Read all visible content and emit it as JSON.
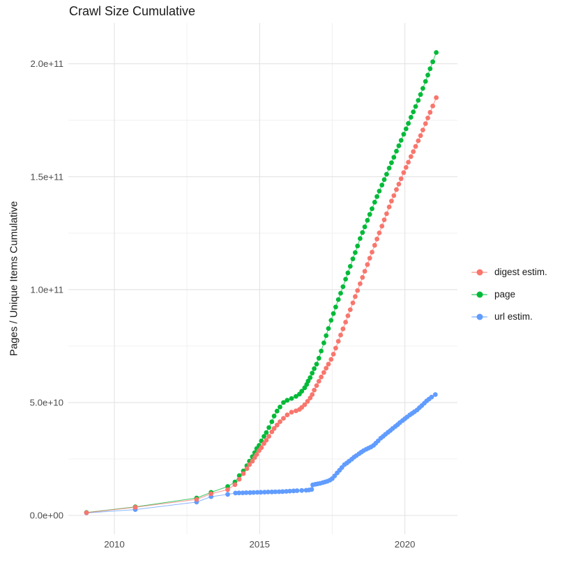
{
  "chart_data": {
    "type": "scatter",
    "title": "Crawl Size Cumulative",
    "xlabel": "",
    "ylabel": "Pages / Unique Items Cumulative",
    "legend_position": "right",
    "grid": true,
    "value_unit": "billions (1e9) of pages / unique items",
    "x_range": [
      2008.4,
      2021.7
    ],
    "ylim_billions": [
      0,
      215
    ],
    "axes": {
      "x": {
        "ticks": [
          {
            "year": 2010,
            "label": "2010"
          },
          {
            "year": 2015,
            "label": "2015"
          },
          {
            "year": 2020,
            "label": "2020"
          }
        ],
        "minor_years": [
          2012.5,
          2017.5
        ]
      },
      "y": {
        "ticks": [
          {
            "value_billions": 0,
            "label": "0.0e+00"
          },
          {
            "value_billions": 50,
            "label": "5.0e+10"
          },
          {
            "value_billions": 100,
            "label": "1.0e+11"
          },
          {
            "value_billions": 150,
            "label": "1.5e+11"
          },
          {
            "value_billions": 200,
            "label": "2.0e+11"
          }
        ],
        "minor_billions": [
          25,
          75,
          125,
          175
        ]
      }
    },
    "series": [
      {
        "name": "digest estim.",
        "color": "#F8766D",
        "points": [
          [
            2009.04,
            1.2
          ],
          [
            2010.72,
            3.6
          ],
          [
            2012.83,
            7.1
          ],
          [
            2013.33,
            9.6
          ],
          [
            2013.9,
            11.4
          ],
          [
            2014.15,
            13.6
          ],
          [
            2014.3,
            16
          ],
          [
            2014.44,
            18.5
          ],
          [
            2014.56,
            20.7
          ],
          [
            2014.65,
            22.5
          ],
          [
            2014.75,
            24
          ],
          [
            2014.83,
            25.6
          ],
          [
            2014.9,
            27
          ],
          [
            2014.98,
            28.7
          ],
          [
            2015.06,
            30
          ],
          [
            2015.15,
            31.8
          ],
          [
            2015.23,
            33.3
          ],
          [
            2015.32,
            35
          ],
          [
            2015.42,
            37
          ],
          [
            2015.5,
            38.5
          ],
          [
            2015.6,
            40
          ],
          [
            2015.7,
            41.5
          ],
          [
            2015.82,
            43
          ],
          [
            2015.95,
            44.5
          ],
          [
            2016.1,
            45.7
          ],
          [
            2016.25,
            46.3
          ],
          [
            2016.37,
            46.9
          ],
          [
            2016.45,
            47.8
          ],
          [
            2016.55,
            49
          ],
          [
            2016.65,
            50.5
          ],
          [
            2016.74,
            52
          ],
          [
            2016.81,
            53.5
          ],
          [
            2016.88,
            55.5
          ],
          [
            2016.96,
            57.5
          ],
          [
            2017.04,
            59.4
          ],
          [
            2017.12,
            61.3
          ],
          [
            2017.21,
            63.3
          ],
          [
            2017.29,
            65.2
          ],
          [
            2017.37,
            67
          ],
          [
            2017.46,
            69.1
          ],
          [
            2017.54,
            71.4
          ],
          [
            2017.62,
            74.1
          ],
          [
            2017.71,
            77.1
          ],
          [
            2017.79,
            79.9
          ],
          [
            2017.87,
            82.6
          ],
          [
            2017.96,
            85.6
          ],
          [
            2018.04,
            88.4
          ],
          [
            2018.12,
            91.1
          ],
          [
            2018.21,
            94.1
          ],
          [
            2018.29,
            96.9
          ],
          [
            2018.37,
            99.6
          ],
          [
            2018.46,
            102.6
          ],
          [
            2018.54,
            105.4
          ],
          [
            2018.62,
            108.1
          ],
          [
            2018.71,
            111.1
          ],
          [
            2018.79,
            113.9
          ],
          [
            2018.87,
            116.6
          ],
          [
            2018.96,
            119.6
          ],
          [
            2019.04,
            122.4
          ],
          [
            2019.12,
            125.1
          ],
          [
            2019.21,
            128.1
          ],
          [
            2019.29,
            130.9
          ],
          [
            2019.37,
            133.6
          ],
          [
            2019.46,
            136.6
          ],
          [
            2019.54,
            139.2
          ],
          [
            2019.62,
            141.6
          ],
          [
            2019.71,
            144.3
          ],
          [
            2019.79,
            146.7
          ],
          [
            2019.87,
            149.1
          ],
          [
            2019.96,
            151.8
          ],
          [
            2020.04,
            154.1
          ],
          [
            2020.12,
            156.4
          ],
          [
            2020.21,
            158.9
          ],
          [
            2020.29,
            161.1
          ],
          [
            2020.37,
            163.4
          ],
          [
            2020.46,
            165.9
          ],
          [
            2020.54,
            168.2
          ],
          [
            2020.62,
            170.7
          ],
          [
            2020.71,
            173.5
          ],
          [
            2020.79,
            176
          ],
          [
            2020.87,
            178.5
          ],
          [
            2020.96,
            181.3
          ],
          [
            2021.08,
            185
          ]
        ]
      },
      {
        "name": "page",
        "color": "#00BA38",
        "points": [
          [
            2009.04,
            1.3
          ],
          [
            2010.72,
            3.8
          ],
          [
            2012.83,
            7.7
          ],
          [
            2013.33,
            10.2
          ],
          [
            2013.9,
            12.8
          ],
          [
            2014.15,
            14.8
          ],
          [
            2014.3,
            17.6
          ],
          [
            2014.44,
            19.7
          ],
          [
            2014.56,
            22
          ],
          [
            2014.65,
            24
          ],
          [
            2014.75,
            26
          ],
          [
            2014.83,
            27.8
          ],
          [
            2014.9,
            29.6
          ],
          [
            2014.98,
            31
          ],
          [
            2015.06,
            33
          ],
          [
            2015.15,
            35
          ],
          [
            2015.23,
            36.7
          ],
          [
            2015.32,
            38.9
          ],
          [
            2015.42,
            41.5
          ],
          [
            2015.5,
            44
          ],
          [
            2015.6,
            46.2
          ],
          [
            2015.7,
            48
          ],
          [
            2015.82,
            50
          ],
          [
            2015.95,
            51
          ],
          [
            2016.1,
            51.8
          ],
          [
            2016.25,
            52.7
          ],
          [
            2016.37,
            53.7
          ],
          [
            2016.45,
            55
          ],
          [
            2016.55,
            56.5
          ],
          [
            2016.62,
            58
          ],
          [
            2016.67,
            59.5
          ],
          [
            2016.74,
            61
          ],
          [
            2016.81,
            63
          ],
          [
            2016.88,
            65
          ],
          [
            2016.96,
            67
          ],
          [
            2017.04,
            69.6
          ],
          [
            2017.12,
            72.8
          ],
          [
            2017.21,
            76.4
          ],
          [
            2017.29,
            79.6
          ],
          [
            2017.37,
            82.8
          ],
          [
            2017.46,
            86.4
          ],
          [
            2017.54,
            89.4
          ],
          [
            2017.62,
            92.3
          ],
          [
            2017.71,
            95.6
          ],
          [
            2017.79,
            98.4
          ],
          [
            2017.87,
            101.3
          ],
          [
            2017.96,
            104.6
          ],
          [
            2018.04,
            107.4
          ],
          [
            2018.12,
            110.3
          ],
          [
            2018.21,
            113.6
          ],
          [
            2018.29,
            116.4
          ],
          [
            2018.37,
            119.3
          ],
          [
            2018.46,
            122.6
          ],
          [
            2018.54,
            125.3
          ],
          [
            2018.62,
            127.8
          ],
          [
            2018.71,
            130.7
          ],
          [
            2018.79,
            133.3
          ],
          [
            2018.87,
            135.8
          ],
          [
            2018.96,
            138.7
          ],
          [
            2019.04,
            141.2
          ],
          [
            2019.12,
            143.6
          ],
          [
            2019.21,
            146.3
          ],
          [
            2019.29,
            148.7
          ],
          [
            2019.37,
            151.1
          ],
          [
            2019.46,
            153.8
          ],
          [
            2019.54,
            156.2
          ],
          [
            2019.62,
            158.6
          ],
          [
            2019.71,
            161.3
          ],
          [
            2019.79,
            163.7
          ],
          [
            2019.87,
            166.1
          ],
          [
            2019.96,
            168.8
          ],
          [
            2020.04,
            171.2
          ],
          [
            2020.12,
            173.6
          ],
          [
            2020.21,
            176.3
          ],
          [
            2020.29,
            178.7
          ],
          [
            2020.37,
            181.1
          ],
          [
            2020.46,
            183.8
          ],
          [
            2020.54,
            186.4
          ],
          [
            2020.62,
            189.1
          ],
          [
            2020.71,
            192.2
          ],
          [
            2020.79,
            195
          ],
          [
            2020.87,
            197.8
          ],
          [
            2020.96,
            200.9
          ],
          [
            2021.08,
            205
          ]
        ]
      },
      {
        "name": "url estim.",
        "color": "#619CFF",
        "points": [
          [
            2009.04,
            1.1
          ],
          [
            2010.72,
            2.6
          ],
          [
            2012.83,
            5.9
          ],
          [
            2013.33,
            8.3
          ],
          [
            2013.9,
            9.3
          ],
          [
            2014.17,
            9.9
          ],
          [
            2014.29,
            9.95
          ],
          [
            2014.42,
            10
          ],
          [
            2014.54,
            10.05
          ],
          [
            2014.67,
            10.1
          ],
          [
            2014.79,
            10.15
          ],
          [
            2014.92,
            10.2
          ],
          [
            2015.04,
            10.25
          ],
          [
            2015.17,
            10.3
          ],
          [
            2015.29,
            10.35
          ],
          [
            2015.42,
            10.4
          ],
          [
            2015.54,
            10.45
          ],
          [
            2015.67,
            10.5
          ],
          [
            2015.79,
            10.55
          ],
          [
            2015.92,
            10.65
          ],
          [
            2016.04,
            10.75
          ],
          [
            2016.17,
            10.85
          ],
          [
            2016.29,
            10.95
          ],
          [
            2016.45,
            11.05
          ],
          [
            2016.6,
            11.15
          ],
          [
            2016.7,
            11.25
          ],
          [
            2016.79,
            11.5
          ],
          [
            2016.83,
            13.5
          ],
          [
            2016.92,
            13.8
          ],
          [
            2017,
            14
          ],
          [
            2017.08,
            14.2
          ],
          [
            2017.17,
            14.5
          ],
          [
            2017.25,
            14.8
          ],
          [
            2017.33,
            15.1
          ],
          [
            2017.42,
            15.6
          ],
          [
            2017.5,
            16.3
          ],
          [
            2017.58,
            17.5
          ],
          [
            2017.67,
            18.8
          ],
          [
            2017.75,
            20
          ],
          [
            2017.83,
            21.2
          ],
          [
            2017.92,
            22.5
          ],
          [
            2018,
            23.2
          ],
          [
            2018.08,
            24
          ],
          [
            2018.17,
            24.9
          ],
          [
            2018.25,
            25.8
          ],
          [
            2018.33,
            26.5
          ],
          [
            2018.42,
            27.3
          ],
          [
            2018.5,
            28
          ],
          [
            2018.58,
            28.7
          ],
          [
            2018.67,
            29.3
          ],
          [
            2018.75,
            29.8
          ],
          [
            2018.83,
            30.3
          ],
          [
            2018.92,
            31
          ],
          [
            2019,
            32
          ],
          [
            2019.08,
            33
          ],
          [
            2019.17,
            34.2
          ],
          [
            2019.25,
            35
          ],
          [
            2019.33,
            35.9
          ],
          [
            2019.42,
            36.8
          ],
          [
            2019.5,
            37.6
          ],
          [
            2019.58,
            38.5
          ],
          [
            2019.67,
            39.4
          ],
          [
            2019.75,
            40.2
          ],
          [
            2019.83,
            41.1
          ],
          [
            2019.92,
            42
          ],
          [
            2020,
            42.8
          ],
          [
            2020.08,
            43.6
          ],
          [
            2020.17,
            44.5
          ],
          [
            2020.25,
            45.2
          ],
          [
            2020.33,
            45.9
          ],
          [
            2020.42,
            46.7
          ],
          [
            2020.5,
            47.7
          ],
          [
            2020.58,
            48.6
          ],
          [
            2020.67,
            49.7
          ],
          [
            2020.75,
            50.7
          ],
          [
            2020.83,
            51.5
          ],
          [
            2020.92,
            52.4
          ],
          [
            2021.05,
            53.5
          ]
        ]
      }
    ]
  }
}
